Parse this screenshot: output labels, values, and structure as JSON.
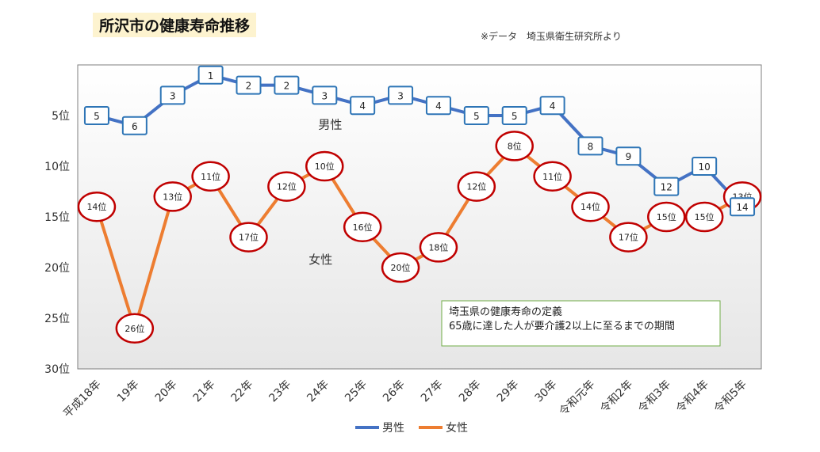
{
  "title": "所沢市の健康寿命推移",
  "source": "※データ　埼玉県衛生研究所より",
  "chart_data": {
    "type": "line",
    "title": "所沢市の健康寿命推移",
    "categories": [
      "平成18年",
      "19年",
      "20年",
      "21年",
      "22年",
      "23年",
      "24年",
      "25年",
      "26年",
      "27年",
      "28年",
      "29年",
      "30年",
      "令和元年",
      "令和2年",
      "令和3年",
      "令和4年",
      "令和5年"
    ],
    "yaxis": {
      "reversed": true,
      "range": [
        0,
        30
      ],
      "ticks": [
        5,
        10,
        15,
        20,
        25,
        30
      ],
      "tick_labels": [
        "5位",
        "10位",
        "15位",
        "20位",
        "25位",
        "30位"
      ]
    },
    "grid": false,
    "legend": "bottom",
    "series": [
      {
        "name": "男性",
        "color": "#4472c4",
        "values": [
          5,
          6,
          3,
          1,
          2,
          2,
          3,
          4,
          3,
          4,
          5,
          5,
          4,
          8,
          9,
          12,
          10,
          14
        ],
        "data_labels": [
          "5",
          "6",
          "3",
          "1",
          "2",
          "2",
          "3",
          "4",
          "3",
          "4",
          "5",
          "5",
          "4",
          "8",
          "9",
          "12",
          "10",
          "14"
        ],
        "marker": "square-box",
        "series_label": "男性"
      },
      {
        "name": "女性",
        "color": "#ed7d31",
        "values": [
          14,
          26,
          13,
          11,
          17,
          12,
          10,
          16,
          20,
          18,
          12,
          8,
          11,
          14,
          17,
          15,
          15,
          13
        ],
        "data_labels": [
          "14位",
          "26位",
          "13位",
          "11位",
          "17位",
          "12位",
          "10位",
          "16位",
          "20位",
          "18位",
          "12位",
          "8位",
          "11位",
          "14位",
          "17位",
          "15位",
          "15位",
          "13位"
        ],
        "marker": "red-ellipse",
        "series_label": "女性"
      }
    ],
    "annotation": {
      "line1": "埼玉県の健康寿命の定義",
      "line2": "65歳に達した人が要介護2以上に至るまでの期間"
    }
  }
}
